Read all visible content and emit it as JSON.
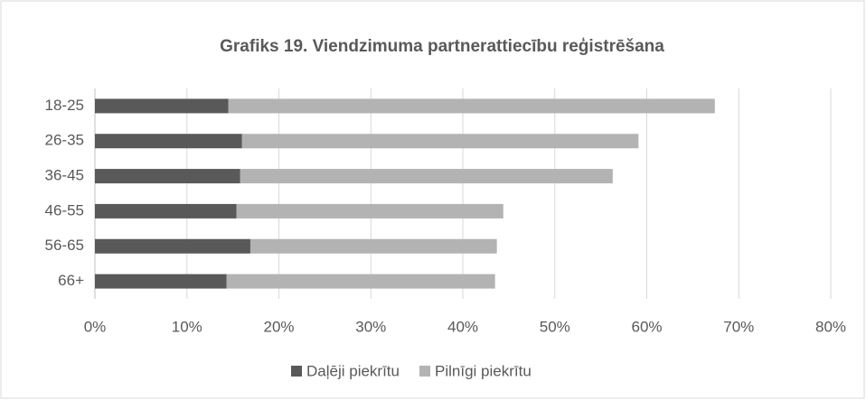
{
  "chart_data": {
    "type": "stacked_barh",
    "title": "Grafiks 19. Viendzimuma partnerattiecību reģistrēšana",
    "categories": [
      "18-25",
      "26-35",
      "36-45",
      "46-55",
      "56-65",
      "66+"
    ],
    "series": [
      {
        "name": "Daļēji piekrītu",
        "color": "#595959",
        "values": [
          14.5,
          16.0,
          15.8,
          15.4,
          16.9,
          14.3
        ]
      },
      {
        "name": "Pilnīgi piekrītu",
        "color": "#b3b3b3",
        "values": [
          52.9,
          43.1,
          40.5,
          29.0,
          26.8,
          29.2
        ]
      }
    ],
    "xlim": [
      0,
      80
    ],
    "xticks": [
      {
        "value": 0,
        "label": "0%"
      },
      {
        "value": 10,
        "label": "10%"
      },
      {
        "value": 20,
        "label": "20%"
      },
      {
        "value": 30,
        "label": "30%"
      },
      {
        "value": 40,
        "label": "40%"
      },
      {
        "value": 50,
        "label": "50%"
      },
      {
        "value": 60,
        "label": "60%"
      },
      {
        "value": 70,
        "label": "70%"
      },
      {
        "value": 80,
        "label": "80%"
      }
    ],
    "grid": true,
    "legend": "bottom"
  }
}
